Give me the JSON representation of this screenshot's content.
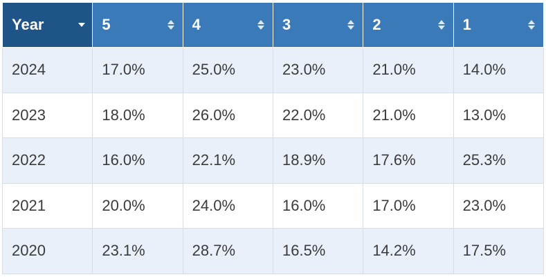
{
  "table": {
    "headers": {
      "year": "Year",
      "c5": "5",
      "c4": "4",
      "c3": "3",
      "c2": "2",
      "c1": "1"
    },
    "rows": [
      {
        "year": "2024",
        "c5": "17.0%",
        "c4": "25.0%",
        "c3": "23.0%",
        "c2": "21.0%",
        "c1": "14.0%"
      },
      {
        "year": "2023",
        "c5": "18.0%",
        "c4": "26.0%",
        "c3": "22.0%",
        "c2": "21.0%",
        "c1": "13.0%"
      },
      {
        "year": "2022",
        "c5": "16.0%",
        "c4": "22.1%",
        "c3": "18.9%",
        "c2": "17.6%",
        "c1": "25.3%"
      },
      {
        "year": "2021",
        "c5": "20.0%",
        "c4": "24.0%",
        "c3": "16.0%",
        "c2": "17.0%",
        "c1": "23.0%"
      },
      {
        "year": "2020",
        "c5": "23.1%",
        "c4": "28.7%",
        "c3": "16.5%",
        "c2": "14.2%",
        "c1": "17.5%"
      }
    ],
    "icons": {
      "year_sort": "chevron-down-icon",
      "column_sort": "sort-icon"
    },
    "colors": {
      "year_header_bg": "#1f5488",
      "header_bg": "#3a7ab8",
      "stripe_bg": "#e9f0fa"
    }
  }
}
